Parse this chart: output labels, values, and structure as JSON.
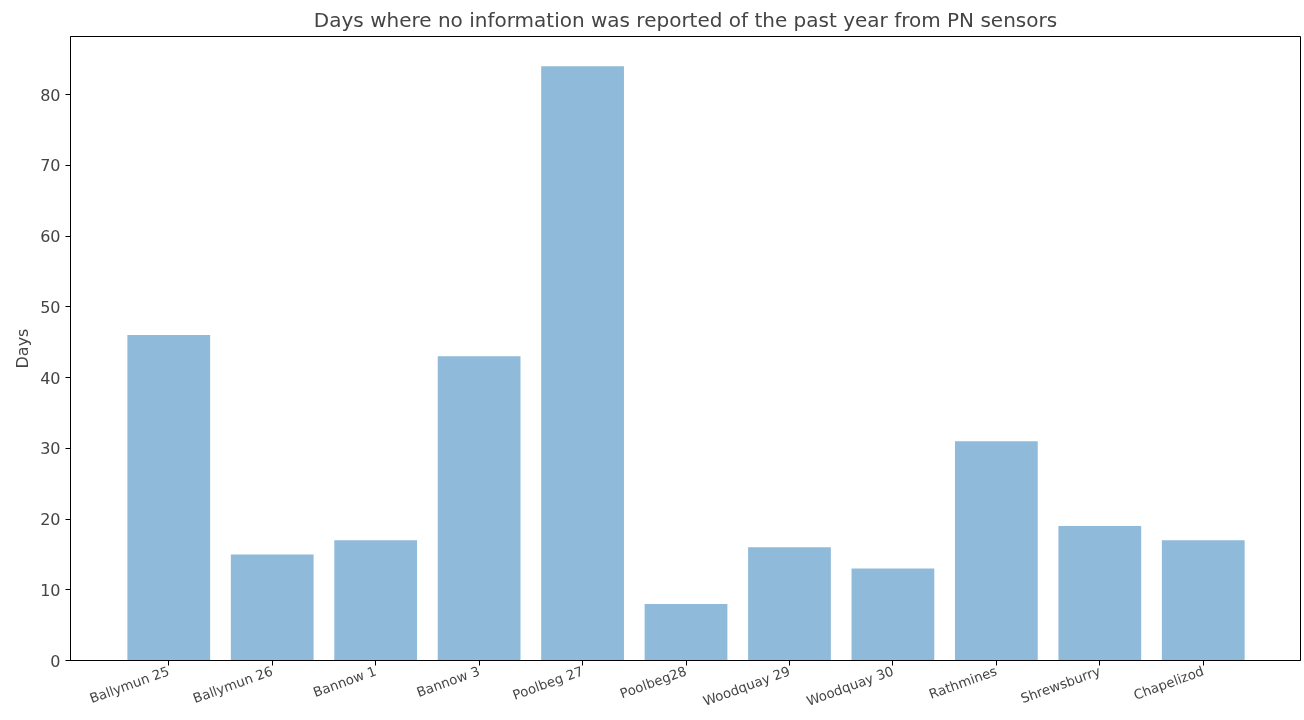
{
  "chart_data": {
    "type": "bar",
    "title": "Days where no information was reported of the past year from PN sensors",
    "ylabel": "Days",
    "categories": [
      "Ballymun 25",
      "Ballymun 26",
      "Bannow 1",
      "Bannow 3",
      "Poolbeg 27",
      "Poolbeg28",
      "Woodquay 29",
      "Woodquay 30",
      "Rathmines",
      "Shrewsburry",
      "Chapelizod"
    ],
    "values": [
      46,
      15,
      17,
      43,
      84,
      8,
      16,
      13,
      31,
      19,
      17
    ],
    "color": "#8fbad9",
    "ylim": [
      0,
      88.2
    ],
    "yticks": [
      0,
      10,
      20,
      30,
      40,
      50,
      60,
      70,
      80
    ],
    "grid": false
  }
}
